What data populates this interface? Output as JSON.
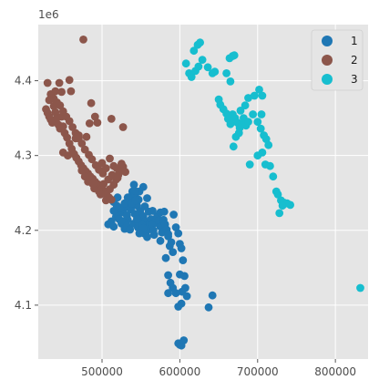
{
  "chart_data": {
    "type": "scatter",
    "title": "",
    "xlabel": "",
    "ylabel": "",
    "xlim": [
      418000,
      842000
    ],
    "ylim": [
      4028000,
      4475000
    ],
    "y_offset_text": "1e6",
    "x_ticks": [
      500000,
      600000,
      700000,
      800000
    ],
    "x_tick_labels": [
      "500000",
      "600000",
      "700000",
      "800000"
    ],
    "y_ticks": [
      4100000,
      4200000,
      4300000,
      4400000
    ],
    "y_tick_labels": [
      "4.1",
      "4.2",
      "4.3",
      "4.4"
    ],
    "grid": true,
    "legend_position": "top-right",
    "series": [
      {
        "name": "1",
        "color": "#1f77b4",
        "points": [
          [
            508000,
            4208000
          ],
          [
            512000,
            4212000
          ],
          [
            515000,
            4205000
          ],
          [
            518000,
            4218000
          ],
          [
            520000,
            4222000
          ],
          [
            522000,
            4215000
          ],
          [
            525000,
            4209000
          ],
          [
            527000,
            4224000
          ],
          [
            529000,
            4202000
          ],
          [
            531000,
            4231000
          ],
          [
            533000,
            4214000
          ],
          [
            535000,
            4238000
          ],
          [
            537000,
            4245000
          ],
          [
            539000,
            4252000
          ],
          [
            541000,
            4261000
          ],
          [
            543000,
            4249000
          ],
          [
            545000,
            4233000
          ],
          [
            547000,
            4241000
          ],
          [
            549000,
            4226000
          ],
          [
            551000,
            4220000
          ],
          [
            553000,
            4218000
          ],
          [
            555000,
            4212000
          ],
          [
            557000,
            4198000
          ],
          [
            559000,
            4205000
          ],
          [
            561000,
            4209000
          ],
          [
            563000,
            4215000
          ],
          [
            565000,
            4201000
          ],
          [
            567000,
            4194000
          ],
          [
            569000,
            4210000
          ],
          [
            571000,
            4219000
          ],
          [
            573000,
            4213000
          ],
          [
            575000,
            4205000
          ],
          [
            577000,
            4197000
          ],
          [
            579000,
            4214000
          ],
          [
            581000,
            4208000
          ],
          [
            583000,
            4201000
          ],
          [
            585000,
            4192000
          ],
          [
            587000,
            4179000
          ],
          [
            589000,
            4184000
          ],
          [
            591000,
            4171000
          ],
          [
            527000,
            4212000
          ],
          [
            532000,
            4206000
          ],
          [
            536000,
            4201000
          ],
          [
            541000,
            4209000
          ],
          [
            546000,
            4204000
          ],
          [
            550000,
            4198000
          ],
          [
            554000,
            4196000
          ],
          [
            558000,
            4191000
          ],
          [
            532000,
            4220000
          ],
          [
            537000,
            4228000
          ],
          [
            542000,
            4222000
          ],
          [
            547000,
            4211000
          ],
          [
            552000,
            4207000
          ],
          [
            556000,
            4202000
          ],
          [
            524000,
            4230000
          ],
          [
            529000,
            4236000
          ],
          [
            533000,
            4244000
          ],
          [
            538000,
            4236000
          ],
          [
            543000,
            4240000
          ],
          [
            548000,
            4252000
          ],
          [
            553000,
            4258000
          ],
          [
            515000,
            4226000
          ],
          [
            519000,
            4233000
          ],
          [
            558000,
            4243000
          ],
          [
            520000,
            4244000
          ],
          [
            515000,
            4238000
          ],
          [
            560000,
            4225000
          ],
          [
            565000,
            4226000
          ],
          [
            580000,
            4225000
          ],
          [
            592000,
            4221000
          ],
          [
            595000,
            4204000
          ],
          [
            598000,
            4196000
          ],
          [
            600000,
            4182000
          ],
          [
            602000,
            4176000
          ],
          [
            604000,
            4160000
          ],
          [
            600000,
            4141000
          ],
          [
            606000,
            4139000
          ],
          [
            585000,
            4140000
          ],
          [
            588000,
            4130000
          ],
          [
            591000,
            4123000
          ],
          [
            595000,
            4116000
          ],
          [
            603000,
            4118000
          ],
          [
            607000,
            4123000
          ],
          [
            609000,
            4112000
          ],
          [
            602000,
            4102000
          ],
          [
            598000,
            4098000
          ],
          [
            585000,
            4116000
          ],
          [
            642000,
            4113000
          ],
          [
            637000,
            4097000
          ],
          [
            598000,
            4049000
          ],
          [
            600000,
            4047000
          ],
          [
            602000,
            4046000
          ],
          [
            605000,
            4053000
          ],
          [
            582000,
            4163000
          ],
          [
            575000,
            4186000
          ],
          [
            564000,
            4207000
          ],
          [
            555000,
            4232000
          ],
          [
            545000,
            4215000
          ],
          [
            542000,
            4253000
          ],
          [
            585000,
            4195000
          ],
          [
            575000,
            4224000
          ],
          [
            553000,
            4203000
          ],
          [
            566000,
            4200000
          ],
          [
            548000,
            4196000
          ]
        ]
      },
      {
        "name": "2",
        "color": "#8c564b",
        "points": [
          [
            428000,
            4362000
          ],
          [
            430000,
            4357000
          ],
          [
            432000,
            4352000
          ],
          [
            434000,
            4348000
          ],
          [
            436000,
            4344000
          ],
          [
            438000,
            4366000
          ],
          [
            440000,
            4358000
          ],
          [
            442000,
            4350000
          ],
          [
            444000,
            4341000
          ],
          [
            446000,
            4336000
          ],
          [
            448000,
            4352000
          ],
          [
            450000,
            4339000
          ],
          [
            452000,
            4330000
          ],
          [
            455000,
            4324000
          ],
          [
            458000,
            4316000
          ],
          [
            461000,
            4309000
          ],
          [
            464000,
            4302000
          ],
          [
            467000,
            4297000
          ],
          [
            470000,
            4292000
          ],
          [
            473000,
            4287000
          ],
          [
            476000,
            4283000
          ],
          [
            479000,
            4279000
          ],
          [
            482000,
            4276000
          ],
          [
            485000,
            4272000
          ],
          [
            488000,
            4269000
          ],
          [
            491000,
            4265000
          ],
          [
            494000,
            4262000
          ],
          [
            497000,
            4260000
          ],
          [
            500000,
            4256000
          ],
          [
            503000,
            4252000
          ],
          [
            506000,
            4247000
          ],
          [
            509000,
            4244000
          ],
          [
            512000,
            4241000
          ],
          [
            515000,
            4261000
          ],
          [
            518000,
            4268000
          ],
          [
            521000,
            4274000
          ],
          [
            524000,
            4281000
          ],
          [
            527000,
            4285000
          ],
          [
            530000,
            4278000
          ],
          [
            505000,
            4283000
          ],
          [
            501000,
            4276000
          ],
          [
            496000,
            4281000
          ],
          [
            492000,
            4287000
          ],
          [
            487000,
            4295000
          ],
          [
            483000,
            4301000
          ],
          [
            478000,
            4308000
          ],
          [
            474000,
            4316000
          ],
          [
            470000,
            4323000
          ],
          [
            466000,
            4330000
          ],
          [
            462000,
            4338000
          ],
          [
            458000,
            4346000
          ],
          [
            454000,
            4352000
          ],
          [
            450000,
            4359000
          ],
          [
            446000,
            4367000
          ],
          [
            442000,
            4371000
          ],
          [
            438000,
            4376000
          ],
          [
            434000,
            4382000
          ],
          [
            430000,
            4397000
          ],
          [
            445000,
            4397000
          ],
          [
            458000,
            4401000
          ],
          [
            460000,
            4386000
          ],
          [
            448000,
            4385000
          ],
          [
            440000,
            4386000
          ],
          [
            432000,
            4374000
          ],
          [
            476000,
            4455000
          ],
          [
            486000,
            4370000
          ],
          [
            491000,
            4352000
          ],
          [
            484000,
            4343000
          ],
          [
            494000,
            4344000
          ],
          [
            512000,
            4349000
          ],
          [
            527000,
            4338000
          ],
          [
            480000,
            4325000
          ],
          [
            466000,
            4323000
          ],
          [
            470000,
            4327000
          ],
          [
            462000,
            4304000
          ],
          [
            456000,
            4300000
          ],
          [
            450000,
            4304000
          ],
          [
            474000,
            4280000
          ],
          [
            478000,
            4272000
          ],
          [
            482000,
            4265000
          ],
          [
            490000,
            4256000
          ],
          [
            496000,
            4252000
          ],
          [
            502000,
            4262000
          ],
          [
            508000,
            4268000
          ],
          [
            513000,
            4274000
          ],
          [
            519000,
            4283000
          ],
          [
            525000,
            4289000
          ],
          [
            510000,
            4255000
          ],
          [
            505000,
            4240000
          ],
          [
            498000,
            4248000
          ],
          [
            488000,
            4262000
          ],
          [
            500000,
            4290000
          ],
          [
            510000,
            4296000
          ],
          [
            520000,
            4270000
          ],
          [
            515000,
            4286000
          ]
        ]
      },
      {
        "name": "3",
        "color": "#17becf",
        "points": [
          [
            618000,
            4440000
          ],
          [
            623000,
            4448000
          ],
          [
            626000,
            4451000
          ],
          [
            608000,
            4423000
          ],
          [
            612000,
            4410000
          ],
          [
            615000,
            4405000
          ],
          [
            620000,
            4413000
          ],
          [
            624000,
            4419000
          ],
          [
            629000,
            4428000
          ],
          [
            636000,
            4418000
          ],
          [
            642000,
            4410000
          ],
          [
            645000,
            4412000
          ],
          [
            660000,
            4410000
          ],
          [
            664000,
            4430000
          ],
          [
            668000,
            4433000
          ],
          [
            670000,
            4434000
          ],
          [
            665000,
            4399000
          ],
          [
            650000,
            4375000
          ],
          [
            652000,
            4368000
          ],
          [
            656000,
            4362000
          ],
          [
            660000,
            4356000
          ],
          [
            662000,
            4349000
          ],
          [
            665000,
            4342000
          ],
          [
            668000,
            4355000
          ],
          [
            671000,
            4350000
          ],
          [
            674000,
            4344000
          ],
          [
            677000,
            4337000
          ],
          [
            680000,
            4342000
          ],
          [
            682000,
            4350000
          ],
          [
            684000,
            4367000
          ],
          [
            688000,
            4377000
          ],
          [
            696000,
            4380000
          ],
          [
            702000,
            4388000
          ],
          [
            706000,
            4380000
          ],
          [
            694000,
            4355000
          ],
          [
            700000,
            4345000
          ],
          [
            704000,
            4336000
          ],
          [
            708000,
            4327000
          ],
          [
            711000,
            4322000
          ],
          [
            714000,
            4314000
          ],
          [
            706000,
            4304000
          ],
          [
            700000,
            4300000
          ],
          [
            690000,
            4288000
          ],
          [
            710000,
            4288000
          ],
          [
            716000,
            4286000
          ],
          [
            720000,
            4272000
          ],
          [
            724000,
            4252000
          ],
          [
            726000,
            4248000
          ],
          [
            730000,
            4240000
          ],
          [
            734000,
            4237000
          ],
          [
            738000,
            4236000
          ],
          [
            742000,
            4234000
          ],
          [
            728000,
            4223000
          ],
          [
            732000,
            4233000
          ],
          [
            705000,
            4355000
          ],
          [
            672000,
            4325000
          ],
          [
            676000,
            4330000
          ],
          [
            669000,
            4312000
          ],
          [
            832000,
            4123000
          ],
          [
            685000,
            4340000
          ],
          [
            678000,
            4360000
          ],
          [
            688000,
            4345000
          ]
        ]
      }
    ]
  }
}
